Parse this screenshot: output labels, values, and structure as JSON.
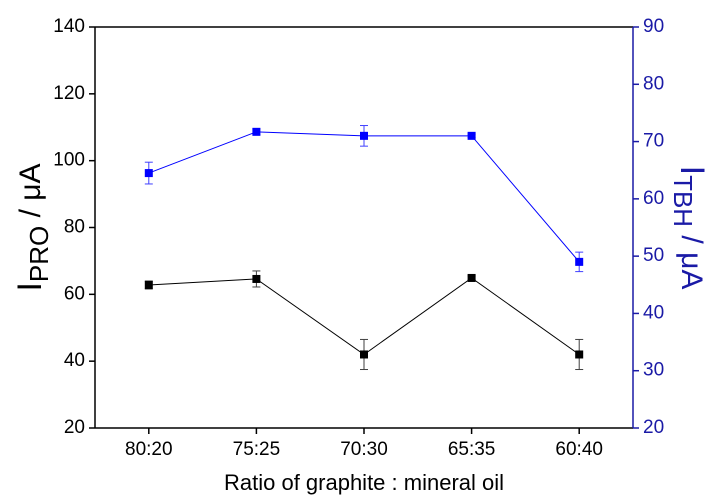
{
  "chart_data": {
    "type": "line",
    "xlabel": "Ratio of graphite : mineral oil",
    "ylabel": {
      "main": "I",
      "sub": "PRO",
      "unit": " / μA"
    },
    "y2label": {
      "main": "I",
      "sub": "TBH",
      "unit": " / μA"
    },
    "categories": [
      "80:20",
      "75:25",
      "70:30",
      "65:35",
      "60:40"
    ],
    "ylim": [
      20,
      140
    ],
    "yticks": [
      20,
      40,
      60,
      80,
      100,
      120,
      140
    ],
    "y2lim": [
      20,
      90
    ],
    "y2ticks": [
      20,
      30,
      40,
      50,
      60,
      70,
      80,
      90
    ],
    "y2color": "#1a1aa6",
    "series": [
      {
        "color": "#000000",
        "values": [
          62.8,
          64.6,
          42,
          64.9,
          42
        ],
        "errors": [
          1.2,
          2.4,
          4.5,
          0.6,
          4.5
        ]
      },
      {
        "color": "#0000ff",
        "axis": "y2",
        "values": [
          64.5,
          71.7,
          71.0,
          71.0,
          49.0
        ],
        "errors": [
          1.9,
          0.5,
          1.8,
          0.3,
          1.7
        ]
      }
    ]
  }
}
